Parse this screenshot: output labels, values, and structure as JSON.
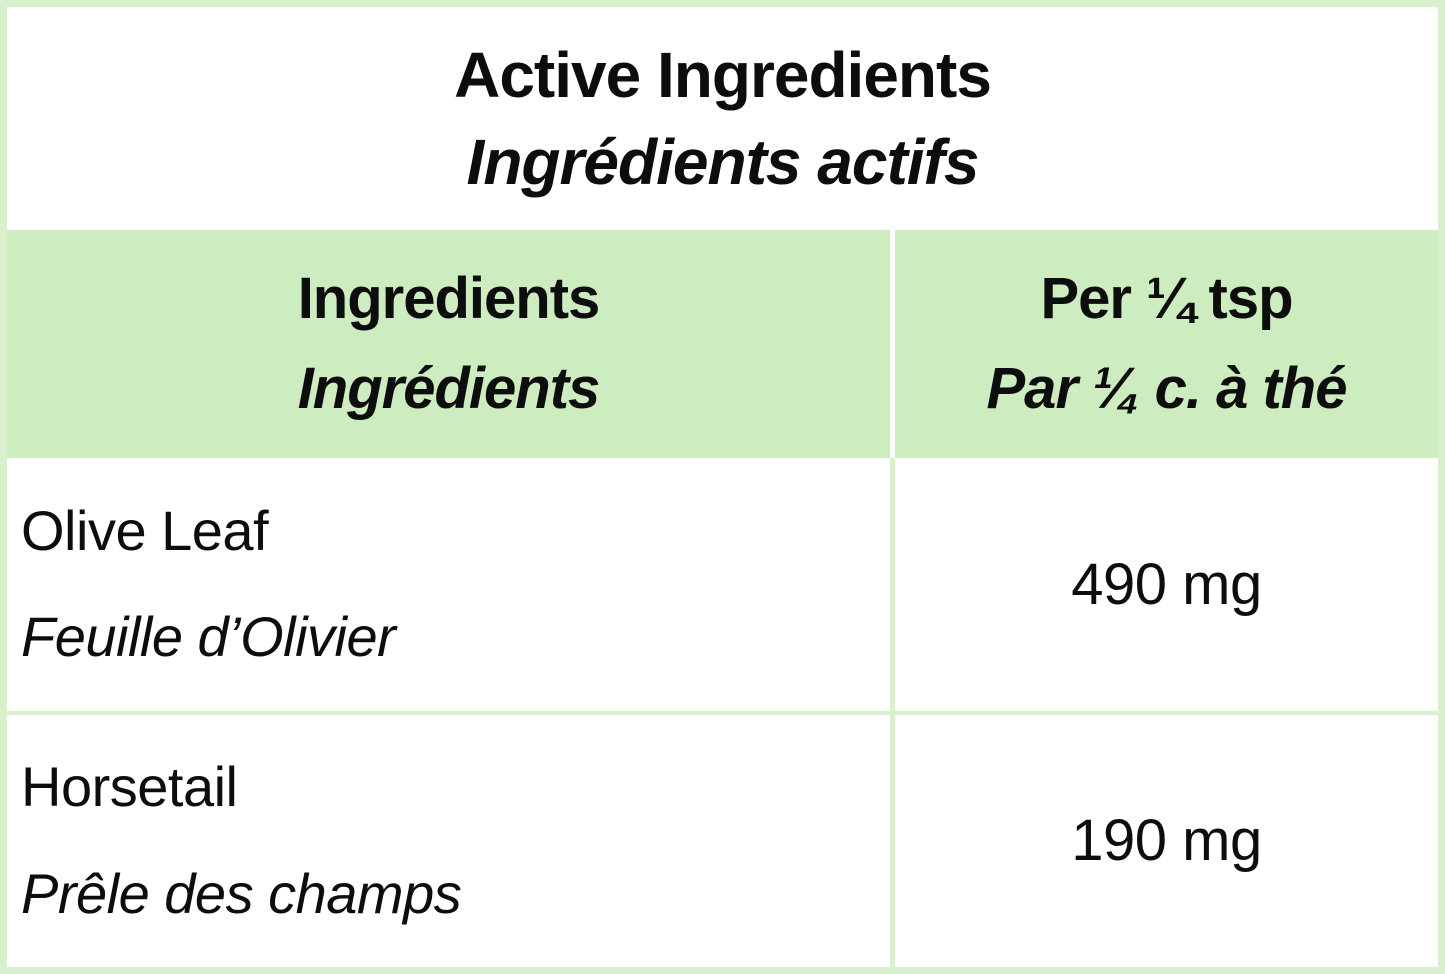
{
  "colors": {
    "green_fill": "#cdecc0",
    "green_line": "#d9f0cc",
    "text": "#0d0d0d"
  },
  "title": {
    "line1": "Active Ingredients",
    "line2": "Ingrédients actifs"
  },
  "header": {
    "ingredients": {
      "en": "Ingredients",
      "fr": "Ingrédients"
    },
    "per_serving": {
      "en": "Per ¼ tsp",
      "fr": "Par ¼ c. à thé"
    }
  },
  "rows": [
    {
      "en": "Olive Leaf",
      "fr": "Feuille d’Olivier",
      "amount": "490 mg"
    },
    {
      "en": "Horsetail",
      "fr": "Prêle des champs",
      "amount": "190 mg"
    }
  ]
}
